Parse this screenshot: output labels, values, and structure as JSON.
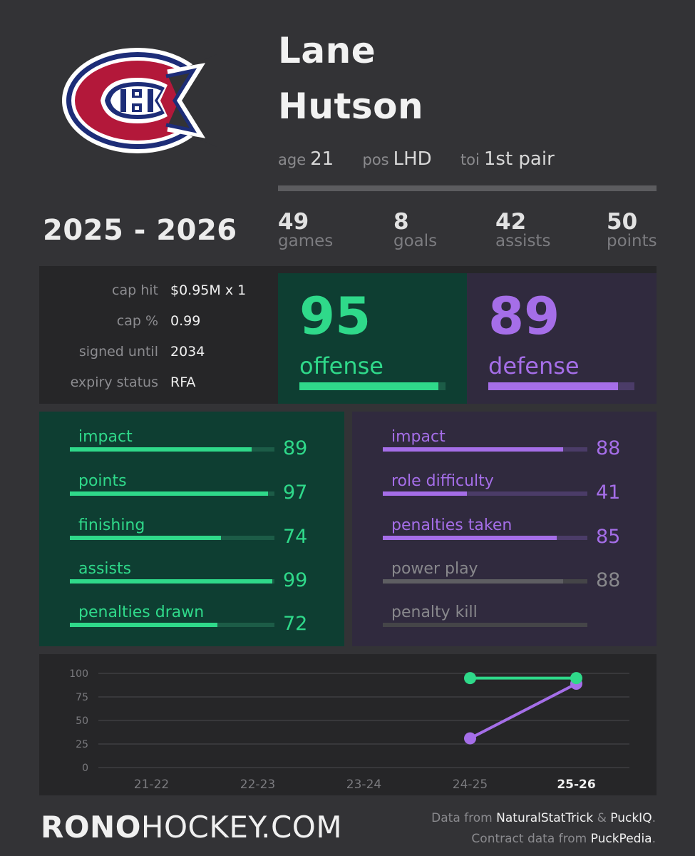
{
  "player": {
    "first_name": "Lane",
    "last_name": "Hutson",
    "age_label": "age",
    "age": "21",
    "pos_label": "pos",
    "pos": "LHD",
    "toi_label": "toi",
    "toi": "1st pair"
  },
  "season": "2025 - 2026",
  "stats": {
    "games": "49",
    "games_label": "games",
    "goals": "8",
    "goals_label": "goals",
    "assists": "42",
    "assists_label": "assists",
    "points": "50",
    "points_label": "points"
  },
  "contract": [
    {
      "label": "cap hit",
      "value": "$0.95M x 1"
    },
    {
      "label": "cap %",
      "value": "0.99"
    },
    {
      "label": "signed until",
      "value": "2034"
    },
    {
      "label": "expiry status",
      "value": "RFA"
    }
  ],
  "offense": {
    "value": "95",
    "label": "offense",
    "level": 95,
    "rows": [
      {
        "label": "impact",
        "value": "89",
        "level": 89
      },
      {
        "label": "points",
        "value": "97",
        "level": 97
      },
      {
        "label": "finishing",
        "value": "74",
        "level": 74
      },
      {
        "label": "assists",
        "value": "99",
        "level": 99
      },
      {
        "label": "penalties drawn",
        "value": "72",
        "level": 72
      }
    ]
  },
  "defense": {
    "value": "89",
    "label": "defense",
    "level": 89,
    "rows": [
      {
        "label": "impact",
        "value": "88",
        "level": 88,
        "active": true
      },
      {
        "label": "role difficulty",
        "value": "41",
        "level": 41,
        "active": true
      },
      {
        "label": "penalties taken",
        "value": "85",
        "level": 85,
        "active": true
      },
      {
        "label": "power play",
        "value": "88",
        "level": 88,
        "active": false
      },
      {
        "label": "penalty kill",
        "value": "",
        "level": 0,
        "active": false
      }
    ]
  },
  "colors": {
    "offense": "#2fd98a",
    "offense_track": "#1c5c47",
    "defense": "#a56ee8",
    "defense_track": "#4b3c68",
    "inactive": "#5e5e62",
    "inactive_track": "#454548",
    "inactive_text": "#88888c"
  },
  "chart_data": {
    "type": "line",
    "categories": [
      "21-22",
      "22-23",
      "23-24",
      "24-25",
      "25-26"
    ],
    "yticks": [
      0,
      25,
      50,
      75,
      100
    ],
    "ylim": [
      0,
      100
    ],
    "grid": true,
    "series": [
      {
        "key": "offense",
        "values": [
          null,
          null,
          null,
          95,
          95
        ]
      },
      {
        "key": "defense",
        "values": [
          null,
          null,
          null,
          31,
          89
        ]
      }
    ]
  },
  "footer": {
    "brand_bold": "RONO",
    "brand_rest": "HOCKEY.COM",
    "credit1_prefix": "Data from ",
    "credit1_src1": "NaturalStatTrick",
    "credit1_amp": " & ",
    "credit1_src2": "PuckIQ",
    "credit1_suffix": ".",
    "credit2_prefix": "Contract data from ",
    "credit2_src": "PuckPedia",
    "credit2_suffix": "."
  }
}
